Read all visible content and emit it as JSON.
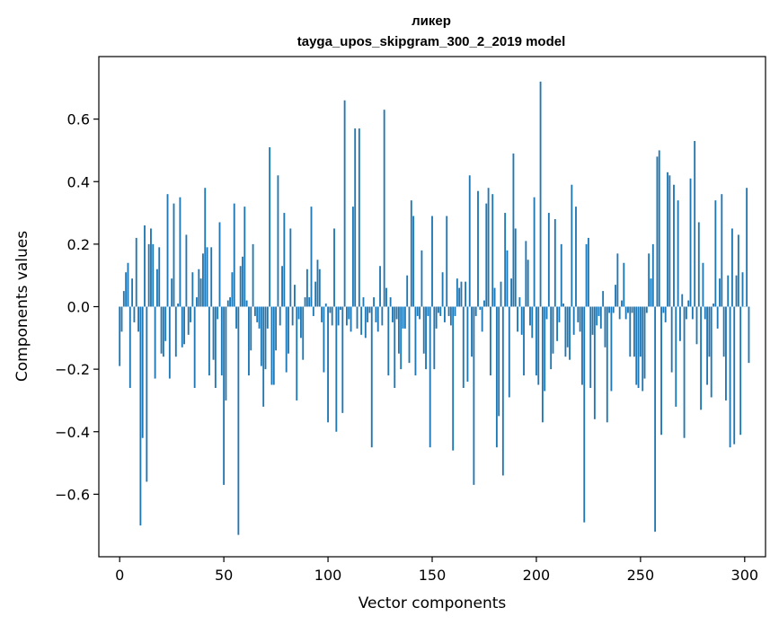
{
  "chart_data": {
    "type": "bar",
    "title": "ликер",
    "subtitle": "tayga_upos_skipgram_300_2_2019 model",
    "xlabel": "Vector components",
    "ylabel": "Components values",
    "xlim": [
      -10,
      310
    ],
    "ylim": [
      -0.8,
      0.8
    ],
    "xticks": [
      0,
      50,
      100,
      150,
      200,
      250,
      300
    ],
    "xtick_labels": [
      "0",
      "50",
      "100",
      "150",
      "200",
      "250",
      "300"
    ],
    "yticks": [
      -0.6,
      -0.4,
      -0.2,
      0.0,
      0.2,
      0.4,
      0.6
    ],
    "ytick_labels": [
      "−0.6",
      "−0.4",
      "−0.2",
      "0.0",
      "0.2",
      "0.4",
      "0.6"
    ],
    "bar_color": "#1f77b4",
    "values": [
      -0.19,
      -0.08,
      0.05,
      0.11,
      0.14,
      -0.26,
      0.09,
      -0.05,
      0.22,
      -0.08,
      -0.7,
      -0.42,
      0.26,
      -0.56,
      0.2,
      0.25,
      0.2,
      -0.23,
      0.12,
      0.19,
      -0.15,
      -0.16,
      -0.11,
      0.36,
      -0.23,
      0.09,
      0.33,
      -0.16,
      0.01,
      0.35,
      -0.13,
      -0.12,
      0.23,
      -0.09,
      -0.05,
      0.11,
      -0.26,
      0.03,
      0.12,
      0.09,
      0.17,
      0.38,
      0.19,
      -0.22,
      0.19,
      -0.17,
      -0.26,
      -0.04,
      0.27,
      -0.22,
      -0.57,
      -0.3,
      0.02,
      0.03,
      0.11,
      0.33,
      -0.07,
      -0.73,
      0.13,
      0.16,
      0.32,
      0.02,
      -0.22,
      -0.14,
      0.2,
      -0.03,
      -0.05,
      -0.07,
      -0.19,
      -0.32,
      -0.2,
      -0.07,
      0.51,
      -0.25,
      -0.25,
      -0.14,
      0.42,
      -0.06,
      0.13,
      0.3,
      -0.21,
      -0.15,
      0.25,
      -0.06,
      0.07,
      -0.3,
      -0.04,
      -0.1,
      -0.17,
      0.03,
      0.12,
      0.03,
      0.32,
      -0.03,
      0.08,
      0.15,
      0.12,
      -0.05,
      -0.21,
      0.01,
      -0.37,
      -0.02,
      -0.06,
      0.25,
      -0.4,
      -0.06,
      -0.01,
      -0.34,
      0.66,
      -0.06,
      -0.04,
      -0.08,
      0.32,
      0.57,
      -0.07,
      0.57,
      -0.09,
      0.03,
      -0.1,
      -0.05,
      -0.02,
      -0.45,
      0.03,
      -0.05,
      -0.08,
      0.13,
      -0.06,
      0.63,
      0.06,
      -0.22,
      0.03,
      -0.05,
      -0.26,
      -0.04,
      -0.15,
      -0.2,
      -0.07,
      -0.07,
      0.1,
      -0.18,
      0.34,
      0.29,
      -0.22,
      -0.03,
      -0.04,
      0.18,
      -0.15,
      -0.2,
      -0.03,
      -0.45,
      0.29,
      -0.2,
      -0.07,
      -0.02,
      -0.03,
      0.11,
      -0.05,
      0.29,
      -0.03,
      -0.06,
      -0.46,
      -0.03,
      0.09,
      0.06,
      0.08,
      -0.26,
      0.08,
      -0.24,
      0.42,
      -0.16,
      -0.57,
      -0.03,
      0.37,
      -0.01,
      -0.08,
      0.02,
      0.33,
      0.38,
      -0.22,
      0.36,
      0.06,
      -0.45,
      -0.35,
      0.08,
      -0.54,
      0.3,
      0.18,
      -0.29,
      0.09,
      0.49,
      0.25,
      -0.08,
      0.03,
      -0.09,
      -0.22,
      0.21,
      0.15,
      -0.06,
      -0.1,
      0.35,
      -0.22,
      -0.25,
      0.72,
      -0.37,
      -0.27,
      -0.04,
      0.3,
      -0.2,
      -0.15,
      0.28,
      -0.11,
      -0.05,
      0.2,
      0.01,
      -0.16,
      -0.13,
      -0.17,
      0.39,
      -0.09,
      0.32,
      -0.05,
      -0.08,
      -0.25,
      -0.69,
      0.2,
      0.22,
      -0.26,
      -0.09,
      -0.36,
      -0.06,
      -0.03,
      -0.07,
      0.05,
      -0.13,
      -0.37,
      -0.02,
      -0.27,
      -0.02,
      0.07,
      0.17,
      -0.04,
      0.02,
      0.14,
      -0.04,
      -0.02,
      -0.16,
      -0.02,
      -0.16,
      -0.25,
      -0.26,
      -0.16,
      -0.27,
      -0.23,
      -0.02,
      0.17,
      0.09,
      0.2,
      -0.72,
      0.48,
      0.5,
      -0.41,
      -0.02,
      -0.05,
      0.43,
      0.42,
      -0.21,
      0.39,
      -0.32,
      0.34,
      -0.11,
      0.04,
      -0.42,
      -0.04,
      0.02,
      0.41,
      -0.04,
      0.53,
      -0.12,
      0.27,
      -0.33,
      0.14,
      -0.04,
      -0.25,
      -0.16,
      -0.29,
      0.01,
      0.34,
      -0.07,
      0.09,
      0.36,
      -0.16,
      -0.3,
      0.1,
      -0.45,
      0.25,
      -0.44,
      0.1,
      0.23,
      -0.41,
      0.11,
      0.0,
      0.38,
      -0.18
    ]
  }
}
